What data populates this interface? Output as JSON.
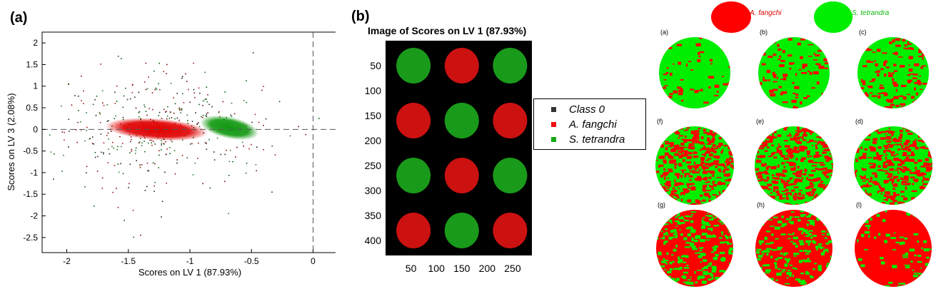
{
  "panels": {
    "a_label": "(a)",
    "b_label": "(b)"
  },
  "chart_data": [
    {
      "type": "scatter",
      "title": "",
      "xlabel": "Scores on LV 1 (87.93%)",
      "ylabel": "Scores on LV 3 (2.08%)",
      "xlim": [
        -2.2,
        0.2
      ],
      "ylim": [
        -2.85,
        2.25
      ],
      "xticks": [
        -2,
        -1.5,
        -1,
        -0.5,
        0
      ],
      "xtick_labels": [
        "-2",
        "-1.5",
        "-1",
        "-0.5",
        "0"
      ],
      "yticks": [
        2,
        1.5,
        1,
        0.5,
        0,
        -0.5,
        -1,
        -1.5,
        -2,
        -2.5
      ],
      "ytick_labels": [
        "2",
        "1.5",
        "1",
        "0.5",
        "0",
        "-0.5",
        "-1",
        "-1.5",
        "-2",
        "-2.5"
      ],
      "reference_lines": {
        "y": 0,
        "x": 0
      },
      "series": [
        {
          "name": "A. fangchi",
          "color": "#e00000",
          "center": [
            -1.27,
            0.0
          ],
          "spread": [
            0.19,
            0.07
          ]
        },
        {
          "name": "S. tetrandra",
          "color": "#119911",
          "center": [
            -0.68,
            0.04
          ],
          "spread": [
            0.11,
            0.07
          ]
        }
      ]
    },
    {
      "type": "heatmap",
      "title": "Image of Scores on LV 1 (87.93%)",
      "xticks": [
        50,
        100,
        150,
        200,
        250
      ],
      "xtick_labels": [
        "50",
        "100",
        "150",
        "200",
        "250"
      ],
      "yticks": [
        50,
        100,
        150,
        200,
        250,
        300,
        350,
        400
      ],
      "ytick_labels": [
        "50",
        "100",
        "150",
        "200",
        "250",
        "300",
        "350",
        "400"
      ],
      "xlim": [
        0,
        288
      ],
      "ylim": [
        0,
        430
      ],
      "background_class": "Class 0",
      "circles": [
        {
          "x": 55,
          "y": 50,
          "class": "S. tetrandra"
        },
        {
          "x": 150,
          "y": 50,
          "class": "A. fangchi"
        },
        {
          "x": 245,
          "y": 50,
          "class": "S. tetrandra"
        },
        {
          "x": 55,
          "y": 160,
          "class": "A. fangchi"
        },
        {
          "x": 150,
          "y": 160,
          "class": "S. tetrandra"
        },
        {
          "x": 245,
          "y": 160,
          "class": "A. fangchi"
        },
        {
          "x": 55,
          "y": 270,
          "class": "S. tetrandra"
        },
        {
          "x": 150,
          "y": 270,
          "class": "A. fangchi"
        },
        {
          "x": 245,
          "y": 270,
          "class": "S. tetrandra"
        },
        {
          "x": 55,
          "y": 380,
          "class": "A. fangchi"
        },
        {
          "x": 150,
          "y": 380,
          "class": "S. tetrandra"
        },
        {
          "x": 245,
          "y": 380,
          "class": "A. fangchi"
        }
      ],
      "legend": [
        {
          "label": "Class 0",
          "color": "#333333"
        },
        {
          "label": "A. fangchi",
          "color": "#ee1111"
        },
        {
          "label": "S. tetrandra",
          "color": "#11aa11"
        }
      ]
    },
    {
      "type": "heatmap",
      "title": "",
      "legend": [
        {
          "label": "A. fangchi",
          "color": "#ff0000"
        },
        {
          "label": "S. tetrandra",
          "color": "#00ee00"
        }
      ],
      "samples": [
        {
          "label": "(a)",
          "red_fraction": 0.08
        },
        {
          "label": "(b)",
          "red_fraction": 0.14
        },
        {
          "label": "(c)",
          "red_fraction": 0.2
        },
        {
          "label": "(f)",
          "red_fraction": 0.5
        },
        {
          "label": "(e)",
          "red_fraction": 0.45
        },
        {
          "label": "(d)",
          "red_fraction": 0.4
        },
        {
          "label": "(g)",
          "red_fraction": 0.68
        },
        {
          "label": "(h)",
          "red_fraction": 0.74
        },
        {
          "label": "(l)",
          "red_fraction": 0.9
        }
      ]
    }
  ]
}
